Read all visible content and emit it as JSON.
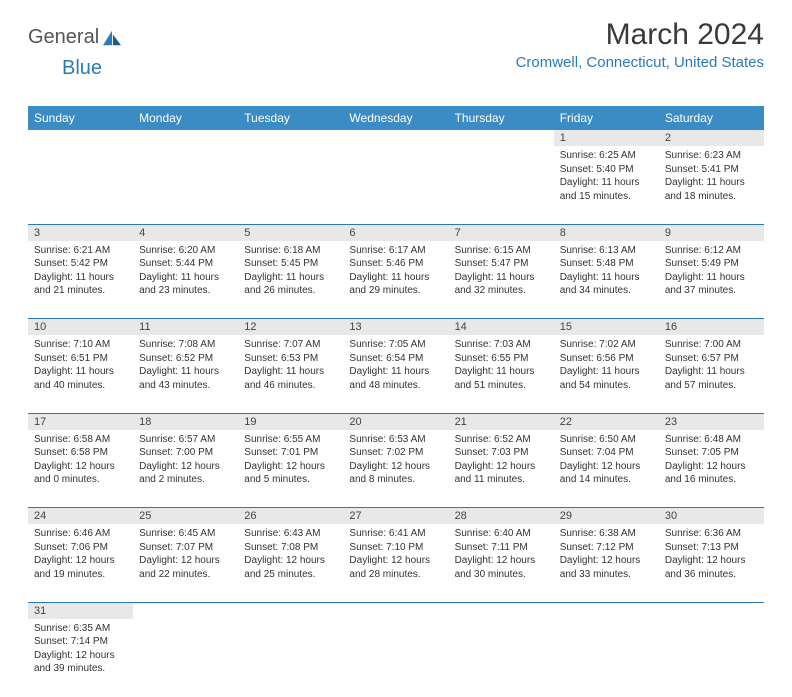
{
  "brand": {
    "general": "General",
    "blue": "Blue"
  },
  "title": "March 2024",
  "location": "Cromwell, Connecticut, United States",
  "colors": {
    "header_bg": "#3b8bc4",
    "header_text": "#ffffff",
    "accent": "#2a7ab8",
    "daynum_bg": "#e8e8e8",
    "text": "#333333"
  },
  "day_headers": [
    "Sunday",
    "Monday",
    "Tuesday",
    "Wednesday",
    "Thursday",
    "Friday",
    "Saturday"
  ],
  "weeks": [
    [
      null,
      null,
      null,
      null,
      null,
      {
        "n": "1",
        "sunrise": "6:25 AM",
        "sunset": "5:40 PM",
        "dl": "11 hours and 15 minutes."
      },
      {
        "n": "2",
        "sunrise": "6:23 AM",
        "sunset": "5:41 PM",
        "dl": "11 hours and 18 minutes."
      }
    ],
    [
      {
        "n": "3",
        "sunrise": "6:21 AM",
        "sunset": "5:42 PM",
        "dl": "11 hours and 21 minutes."
      },
      {
        "n": "4",
        "sunrise": "6:20 AM",
        "sunset": "5:44 PM",
        "dl": "11 hours and 23 minutes."
      },
      {
        "n": "5",
        "sunrise": "6:18 AM",
        "sunset": "5:45 PM",
        "dl": "11 hours and 26 minutes."
      },
      {
        "n": "6",
        "sunrise": "6:17 AM",
        "sunset": "5:46 PM",
        "dl": "11 hours and 29 minutes."
      },
      {
        "n": "7",
        "sunrise": "6:15 AM",
        "sunset": "5:47 PM",
        "dl": "11 hours and 32 minutes."
      },
      {
        "n": "8",
        "sunrise": "6:13 AM",
        "sunset": "5:48 PM",
        "dl": "11 hours and 34 minutes."
      },
      {
        "n": "9",
        "sunrise": "6:12 AM",
        "sunset": "5:49 PM",
        "dl": "11 hours and 37 minutes."
      }
    ],
    [
      {
        "n": "10",
        "sunrise": "7:10 AM",
        "sunset": "6:51 PM",
        "dl": "11 hours and 40 minutes."
      },
      {
        "n": "11",
        "sunrise": "7:08 AM",
        "sunset": "6:52 PM",
        "dl": "11 hours and 43 minutes."
      },
      {
        "n": "12",
        "sunrise": "7:07 AM",
        "sunset": "6:53 PM",
        "dl": "11 hours and 46 minutes."
      },
      {
        "n": "13",
        "sunrise": "7:05 AM",
        "sunset": "6:54 PM",
        "dl": "11 hours and 48 minutes."
      },
      {
        "n": "14",
        "sunrise": "7:03 AM",
        "sunset": "6:55 PM",
        "dl": "11 hours and 51 minutes."
      },
      {
        "n": "15",
        "sunrise": "7:02 AM",
        "sunset": "6:56 PM",
        "dl": "11 hours and 54 minutes."
      },
      {
        "n": "16",
        "sunrise": "7:00 AM",
        "sunset": "6:57 PM",
        "dl": "11 hours and 57 minutes."
      }
    ],
    [
      {
        "n": "17",
        "sunrise": "6:58 AM",
        "sunset": "6:58 PM",
        "dl": "12 hours and 0 minutes."
      },
      {
        "n": "18",
        "sunrise": "6:57 AM",
        "sunset": "7:00 PM",
        "dl": "12 hours and 2 minutes."
      },
      {
        "n": "19",
        "sunrise": "6:55 AM",
        "sunset": "7:01 PM",
        "dl": "12 hours and 5 minutes."
      },
      {
        "n": "20",
        "sunrise": "6:53 AM",
        "sunset": "7:02 PM",
        "dl": "12 hours and 8 minutes."
      },
      {
        "n": "21",
        "sunrise": "6:52 AM",
        "sunset": "7:03 PM",
        "dl": "12 hours and 11 minutes."
      },
      {
        "n": "22",
        "sunrise": "6:50 AM",
        "sunset": "7:04 PM",
        "dl": "12 hours and 14 minutes."
      },
      {
        "n": "23",
        "sunrise": "6:48 AM",
        "sunset": "7:05 PM",
        "dl": "12 hours and 16 minutes."
      }
    ],
    [
      {
        "n": "24",
        "sunrise": "6:46 AM",
        "sunset": "7:06 PM",
        "dl": "12 hours and 19 minutes."
      },
      {
        "n": "25",
        "sunrise": "6:45 AM",
        "sunset": "7:07 PM",
        "dl": "12 hours and 22 minutes."
      },
      {
        "n": "26",
        "sunrise": "6:43 AM",
        "sunset": "7:08 PM",
        "dl": "12 hours and 25 minutes."
      },
      {
        "n": "27",
        "sunrise": "6:41 AM",
        "sunset": "7:10 PM",
        "dl": "12 hours and 28 minutes."
      },
      {
        "n": "28",
        "sunrise": "6:40 AM",
        "sunset": "7:11 PM",
        "dl": "12 hours and 30 minutes."
      },
      {
        "n": "29",
        "sunrise": "6:38 AM",
        "sunset": "7:12 PM",
        "dl": "12 hours and 33 minutes."
      },
      {
        "n": "30",
        "sunrise": "6:36 AM",
        "sunset": "7:13 PM",
        "dl": "12 hours and 36 minutes."
      }
    ],
    [
      {
        "n": "31",
        "sunrise": "6:35 AM",
        "sunset": "7:14 PM",
        "dl": "12 hours and 39 minutes."
      },
      null,
      null,
      null,
      null,
      null,
      null
    ]
  ],
  "labels": {
    "sunrise": "Sunrise: ",
    "sunset": "Sunset: ",
    "daylight": "Daylight: "
  }
}
